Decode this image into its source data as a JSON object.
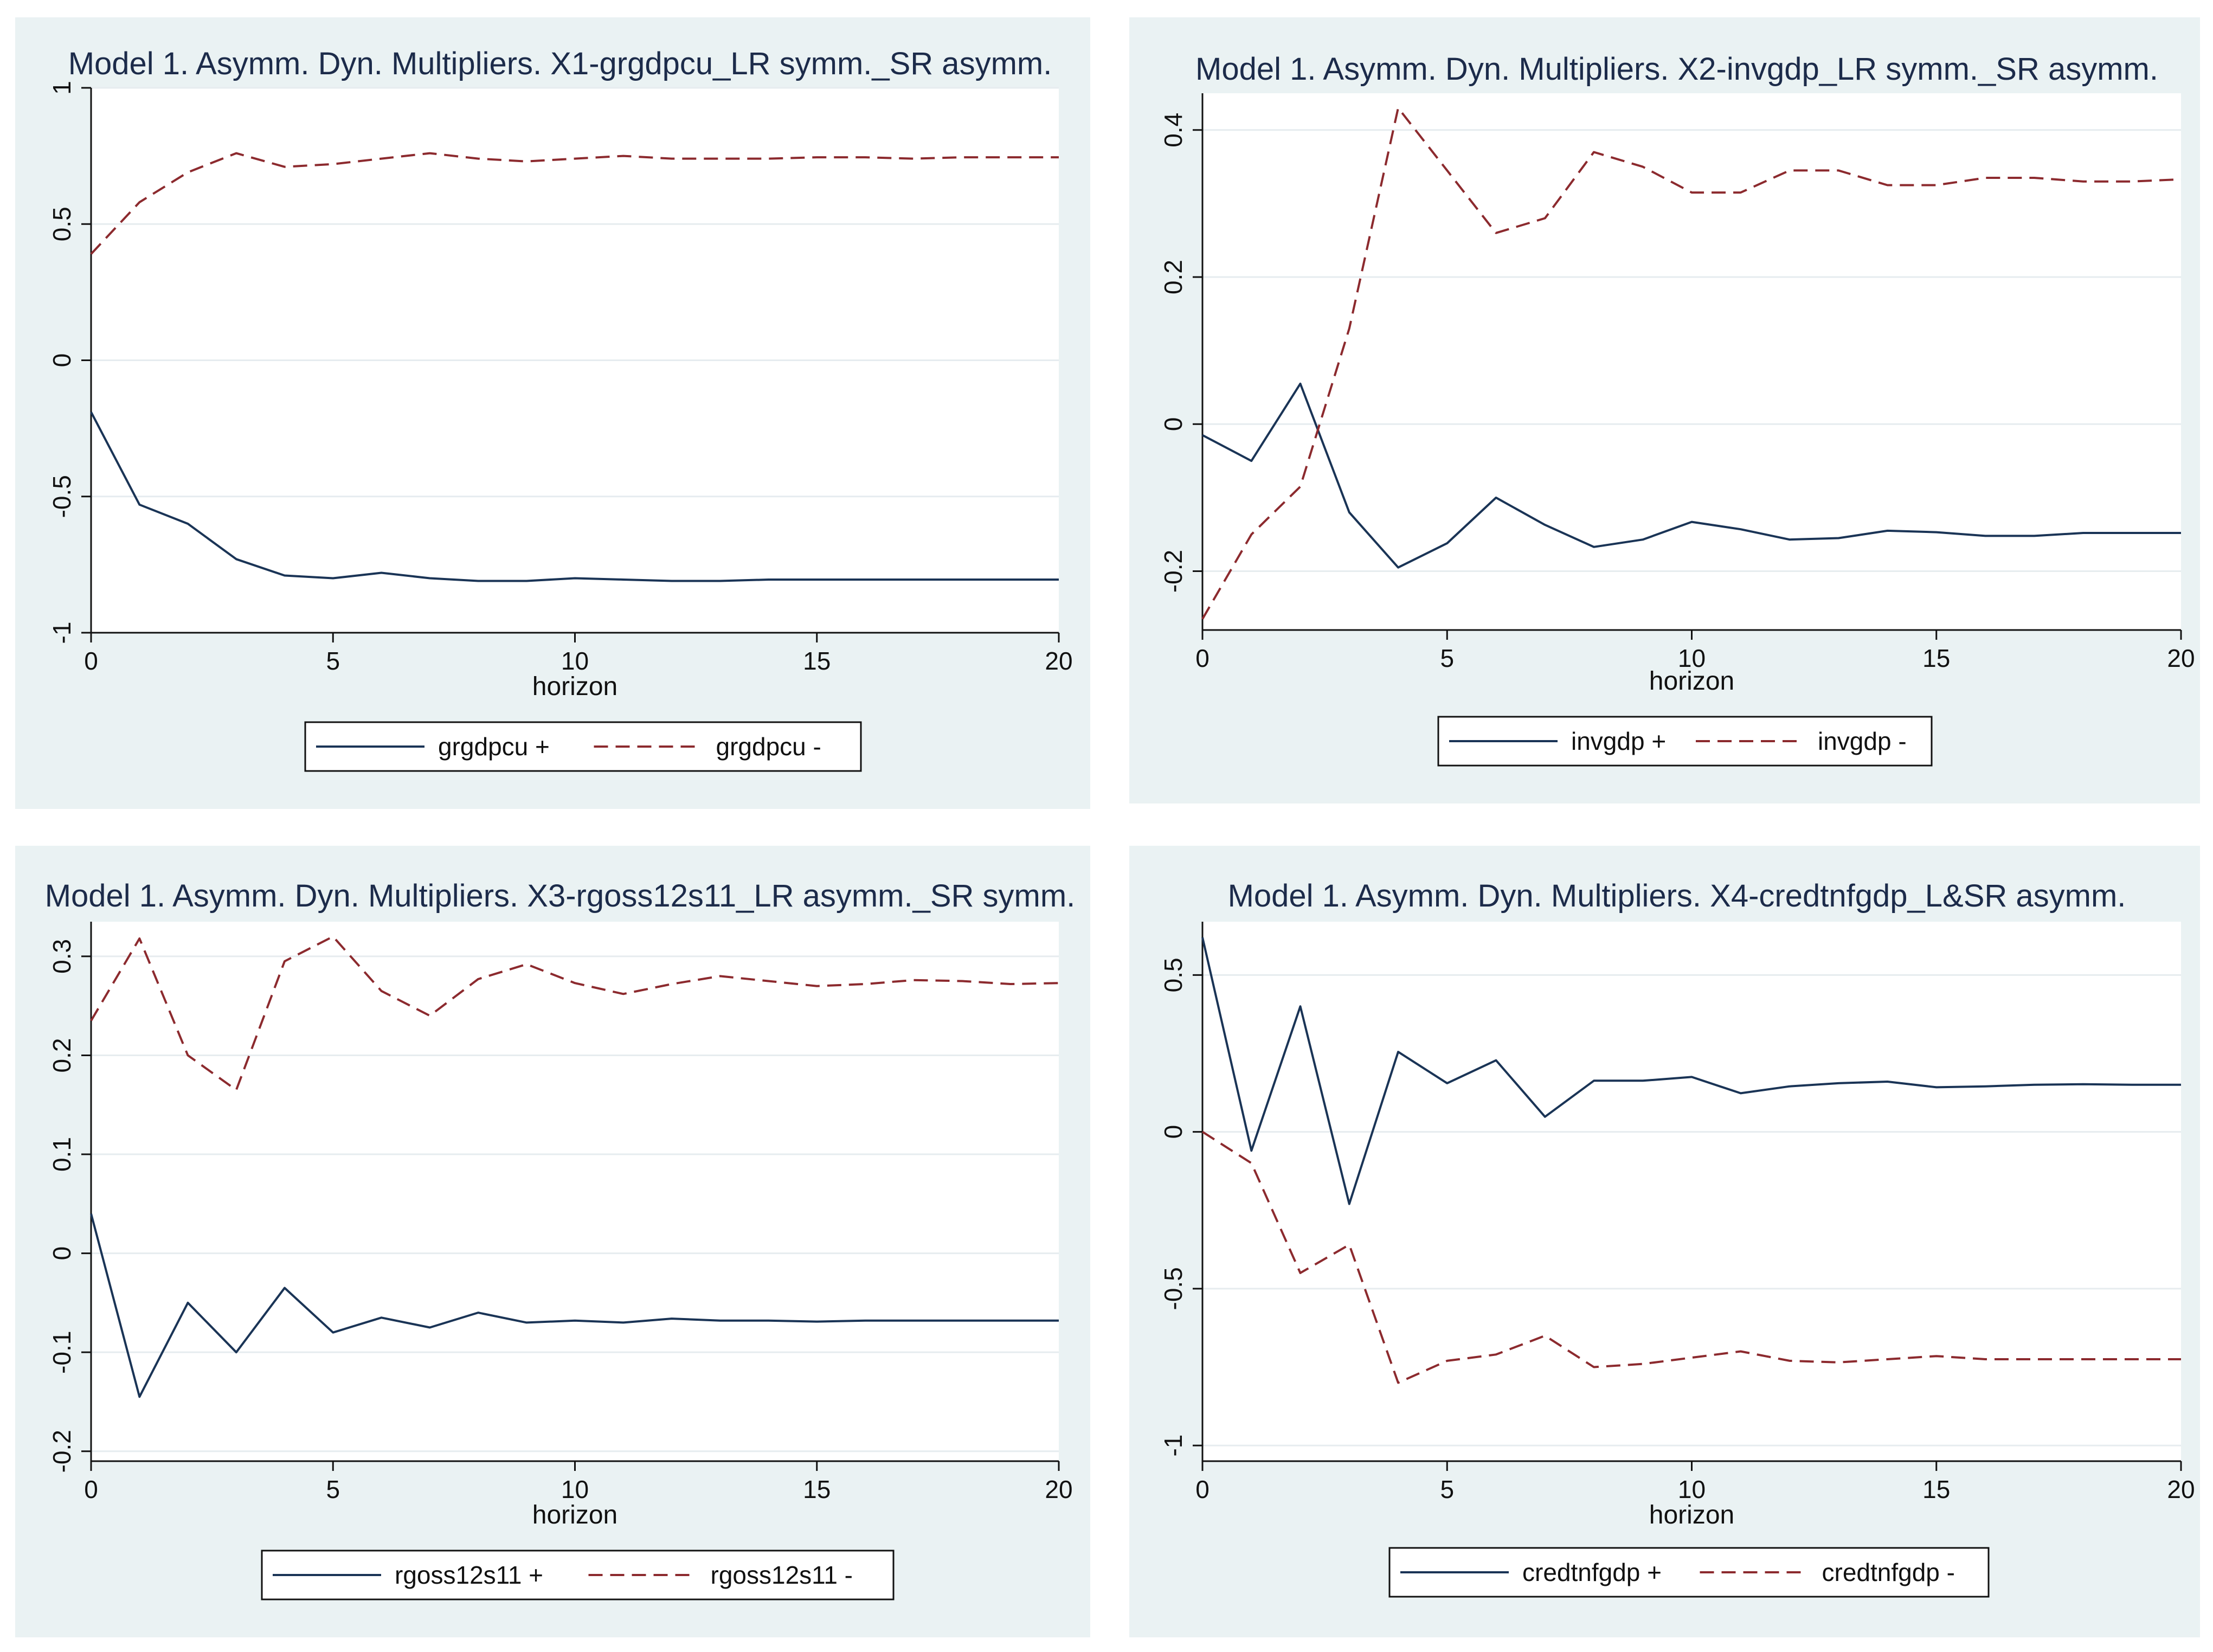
{
  "colors": {
    "panel_bg": "#eaf2f3",
    "plot_bg": "#ffffff",
    "grid": "#e6ecef",
    "pos": "#1a3456",
    "neg": "#8c2a2e",
    "axis": "#111111"
  },
  "chart_data": [
    {
      "type": "line",
      "title": "Model 1. Asymm. Dyn. Multipliers. X1-grgdpcu_LR symm._SR asymm.",
      "xlabel": "horizon",
      "ylabel": "",
      "xlim": [
        0,
        20
      ],
      "ylim": [
        -1,
        1
      ],
      "xticks": [
        0,
        5,
        10,
        15,
        20
      ],
      "xtick_labels": [
        "0",
        "5",
        "10",
        "15",
        "20"
      ],
      "yticks": [
        -1,
        -0.5,
        0,
        0.5,
        1
      ],
      "ytick_labels": [
        "-1",
        "-0.5",
        "0",
        "0.5",
        "1"
      ],
      "x": [
        0,
        1,
        2,
        3,
        4,
        5,
        6,
        7,
        8,
        9,
        10,
        11,
        12,
        13,
        14,
        15,
        16,
        17,
        18,
        19,
        20
      ],
      "series": [
        {
          "name": "grgdpcu +",
          "style": "solid",
          "values": [
            -0.19,
            -0.53,
            -0.6,
            -0.73,
            -0.79,
            -0.8,
            -0.78,
            -0.8,
            -0.81,
            -0.81,
            -0.8,
            -0.805,
            -0.81,
            -0.81,
            -0.805,
            -0.805,
            -0.805,
            -0.805,
            -0.805,
            -0.805,
            -0.805
          ]
        },
        {
          "name": "grgdpcu -",
          "style": "dashed",
          "values": [
            0.39,
            0.58,
            0.69,
            0.76,
            0.71,
            0.72,
            0.74,
            0.76,
            0.74,
            0.73,
            0.74,
            0.75,
            0.74,
            0.74,
            0.74,
            0.745,
            0.745,
            0.74,
            0.745,
            0.745,
            0.745
          ]
        }
      ],
      "legend": [
        "grgdpcu +",
        "grgdpcu -"
      ]
    },
    {
      "type": "line",
      "title": "Model 1. Asymm. Dyn. Multipliers. X2-invgdp_LR symm._SR asymm.",
      "xlabel": "horizon",
      "ylabel": "",
      "xlim": [
        0,
        20
      ],
      "ylim": [
        -0.28,
        0.45
      ],
      "xticks": [
        0,
        5,
        10,
        15,
        20
      ],
      "xtick_labels": [
        "0",
        "5",
        "10",
        "15",
        "20"
      ],
      "yticks": [
        -0.2,
        0,
        0.2,
        0.4
      ],
      "ytick_labels": [
        "-0.2",
        "0",
        "0.2",
        "0.4"
      ],
      "x": [
        0,
        1,
        2,
        3,
        4,
        5,
        6,
        7,
        8,
        9,
        10,
        11,
        12,
        13,
        14,
        15,
        16,
        17,
        18,
        19,
        20
      ],
      "series": [
        {
          "name": "invgdp +",
          "style": "solid",
          "values": [
            -0.015,
            -0.05,
            0.055,
            -0.12,
            -0.195,
            -0.162,
            -0.1,
            -0.137,
            -0.167,
            -0.157,
            -0.133,
            -0.143,
            -0.157,
            -0.155,
            -0.145,
            -0.147,
            -0.152,
            -0.152,
            -0.148,
            -0.148,
            -0.148
          ]
        },
        {
          "name": "invgdp -",
          "style": "dashed",
          "values": [
            -0.265,
            -0.15,
            -0.085,
            0.13,
            0.43,
            0.345,
            0.26,
            0.28,
            0.37,
            0.35,
            0.315,
            0.315,
            0.345,
            0.345,
            0.325,
            0.325,
            0.335,
            0.335,
            0.33,
            0.33,
            0.333
          ]
        }
      ],
      "legend": [
        "invgdp +",
        "invgdp -"
      ]
    },
    {
      "type": "line",
      "title": "Model 1. Asymm. Dyn. Multipliers. X3-rgoss12s11_LR asymm._SR symm.",
      "xlabel": "horizon",
      "ylabel": "",
      "xlim": [
        0,
        20
      ],
      "ylim": [
        -0.21,
        0.335
      ],
      "xticks": [
        0,
        5,
        10,
        15,
        20
      ],
      "xtick_labels": [
        "0",
        "5",
        "10",
        "15",
        "20"
      ],
      "yticks": [
        -0.2,
        -0.1,
        0,
        0.1,
        0.2,
        0.3
      ],
      "ytick_labels": [
        "-0.2",
        "-0.1",
        "0",
        "0.1",
        "0.2",
        "0.3"
      ],
      "x": [
        0,
        1,
        2,
        3,
        4,
        5,
        6,
        7,
        8,
        9,
        10,
        11,
        12,
        13,
        14,
        15,
        16,
        17,
        18,
        19,
        20
      ],
      "series": [
        {
          "name": "rgoss12s11 +",
          "style": "solid",
          "values": [
            0.04,
            -0.145,
            -0.05,
            -0.1,
            -0.035,
            -0.08,
            -0.065,
            -0.075,
            -0.06,
            -0.07,
            -0.068,
            -0.07,
            -0.066,
            -0.068,
            -0.068,
            -0.069,
            -0.068,
            -0.068,
            -0.068,
            -0.068,
            -0.068
          ]
        },
        {
          "name": "rgoss12s11 -",
          "style": "dashed",
          "values": [
            0.235,
            0.318,
            0.2,
            0.165,
            0.295,
            0.32,
            0.265,
            0.24,
            0.277,
            0.292,
            0.273,
            0.262,
            0.272,
            0.28,
            0.275,
            0.27,
            0.272,
            0.276,
            0.275,
            0.272,
            0.273
          ]
        }
      ],
      "legend": [
        "rgoss12s11 +",
        "rgoss12s11 -"
      ]
    },
    {
      "type": "line",
      "title": "Model 1. Asymm. Dyn. Multipliers. X4-credtnfgdp_L&SR asymm.",
      "xlabel": "horizon",
      "ylabel": "",
      "xlim": [
        0,
        20
      ],
      "ylim": [
        -1.05,
        0.67
      ],
      "xticks": [
        0,
        5,
        10,
        15,
        20
      ],
      "xtick_labels": [
        "0",
        "5",
        "10",
        "15",
        "20"
      ],
      "yticks": [
        -1,
        -0.5,
        0,
        0.5
      ],
      "ytick_labels": [
        "-1",
        "-0.5",
        "0",
        "0.5"
      ],
      "x": [
        0,
        1,
        2,
        3,
        4,
        5,
        6,
        7,
        8,
        9,
        10,
        11,
        12,
        13,
        14,
        15,
        16,
        17,
        18,
        19,
        20
      ],
      "series": [
        {
          "name": "credtnfgdp +",
          "style": "solid",
          "values": [
            0.62,
            -0.06,
            0.4,
            -0.23,
            0.255,
            0.155,
            0.228,
            0.048,
            0.163,
            0.163,
            0.175,
            0.123,
            0.145,
            0.155,
            0.16,
            0.142,
            0.145,
            0.15,
            0.152,
            0.15,
            0.15
          ]
        },
        {
          "name": "credtnfgdp -",
          "style": "dashed",
          "values": [
            0.0,
            -0.1,
            -0.45,
            -0.36,
            -0.8,
            -0.73,
            -0.71,
            -0.65,
            -0.75,
            -0.74,
            -0.72,
            -0.7,
            -0.73,
            -0.735,
            -0.725,
            -0.715,
            -0.725,
            -0.725,
            -0.725,
            -0.725,
            -0.725
          ]
        }
      ],
      "legend": [
        "credtnfgdp +",
        "credtnfgdp -"
      ]
    }
  ]
}
